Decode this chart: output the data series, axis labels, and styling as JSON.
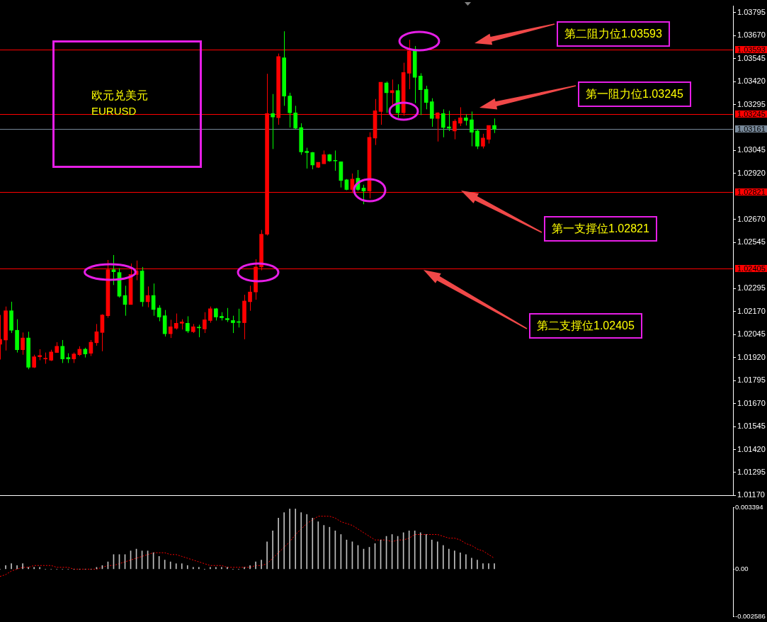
{
  "chart_data": [
    {
      "type": "candlestick",
      "title": "欧元兑美元",
      "subtitle": "EURUSD",
      "categories": [
        null,
        null,
        null,
        null,
        null,
        null,
        null,
        null,
        null,
        null,
        null,
        null,
        null,
        null,
        null,
        null,
        null,
        null,
        null,
        null,
        null,
        null,
        null,
        null,
        null,
        null,
        null,
        null,
        null,
        null,
        null,
        null,
        null,
        null,
        null,
        null,
        null,
        null,
        null,
        null,
        null,
        null,
        null,
        null,
        null,
        null,
        null,
        null,
        null,
        null,
        null,
        null,
        null,
        null,
        null,
        null,
        null,
        null,
        null,
        null,
        null,
        null,
        null,
        null,
        null,
        null,
        null,
        null,
        null,
        null,
        null,
        null,
        null,
        null,
        null,
        null,
        null,
        null,
        null,
        null,
        null,
        null,
        null,
        null,
        null,
        null,
        null,
        null,
        null,
        null,
        null,
        null,
        null,
        null,
        null,
        null,
        null,
        null,
        null,
        null,
        null,
        null,
        null,
        null,
        null,
        null,
        null,
        null,
        null,
        null,
        null,
        null,
        null,
        null,
        null,
        null,
        null,
        null,
        null,
        null,
        null,
        null,
        null,
        null,
        null,
        null,
        null,
        null,
        null,
        null
      ],
      "ohlc": [
        [
          1.01992,
          1.02151,
          1.01909,
          1.02019
        ],
        [
          1.02015,
          1.02197,
          1.01958,
          1.02174
        ],
        [
          1.02174,
          1.02223,
          1.02053,
          1.02068
        ],
        [
          1.02068,
          1.02128,
          1.01947,
          1.01962
        ],
        [
          1.01962,
          1.02056,
          1.01935,
          1.02026
        ],
        [
          1.02026,
          1.0206,
          1.01856,
          1.01867
        ],
        [
          1.01867,
          1.01935,
          1.01863,
          1.01924
        ],
        [
          1.01924,
          1.01965,
          1.01905,
          1.01931
        ],
        [
          1.01912,
          1.01947,
          1.01886,
          1.01916
        ],
        [
          1.01905,
          1.01962,
          1.01901,
          1.0195
        ],
        [
          1.01947,
          1.02003,
          1.01947,
          1.01981
        ],
        [
          1.01981,
          1.02015,
          1.0189,
          1.01912
        ],
        [
          1.0192,
          1.01943,
          1.0189,
          1.01912
        ],
        [
          1.01912,
          1.01947,
          1.0189,
          1.01939
        ],
        [
          1.01935,
          1.01981,
          1.01928,
          1.01965
        ],
        [
          1.01965,
          1.01973,
          1.0192,
          1.01939
        ],
        [
          1.01943,
          1.02015,
          1.01928,
          1.02003
        ],
        [
          1.02,
          1.02102,
          1.01984,
          1.0206
        ],
        [
          1.02056,
          1.02155,
          1.01954,
          1.02151
        ],
        [
          1.02147,
          1.0245,
          1.02136,
          1.02397
        ],
        [
          1.02397,
          1.02477,
          1.02314,
          1.02386
        ],
        [
          1.02382,
          1.02405,
          1.02246,
          1.02253
        ],
        [
          1.02257,
          1.0231,
          1.02147,
          1.02208
        ],
        [
          1.02208,
          1.02431,
          1.02208,
          1.02371
        ],
        [
          1.02371,
          1.02447,
          1.0234,
          1.0239
        ],
        [
          1.0239,
          1.02412,
          1.02197,
          1.02223
        ],
        [
          1.02223,
          1.02306,
          1.02193,
          1.02257
        ],
        [
          1.02257,
          1.02322,
          1.02147,
          1.02181
        ],
        [
          1.02189,
          1.02204,
          1.02117,
          1.0214
        ],
        [
          1.02147,
          1.02178,
          1.02034,
          1.02049
        ],
        [
          1.02049,
          1.02125,
          1.02026,
          1.02087
        ],
        [
          1.02079,
          1.02159,
          1.02072,
          1.02106
        ],
        [
          1.02106,
          1.02128,
          1.02072,
          1.02113
        ],
        [
          1.02106,
          1.02144,
          1.02053,
          1.02064
        ],
        [
          1.0206,
          1.02102,
          1.02053,
          1.02087
        ],
        [
          1.02083,
          1.02098,
          1.0203,
          1.02081
        ],
        [
          1.02075,
          1.02166,
          1.02053,
          1.02125
        ],
        [
          1.02121,
          1.02197,
          1.02109,
          1.02185
        ],
        [
          1.02185,
          1.02189,
          1.02121,
          1.0214
        ],
        [
          1.02144,
          1.02166,
          1.02121,
          1.02136
        ],
        [
          1.02132,
          1.02189,
          1.02113,
          1.02125
        ],
        [
          1.02121,
          1.02147,
          1.02053,
          1.02109
        ],
        [
          1.02113,
          1.02185,
          1.02083,
          1.02111
        ],
        [
          1.02109,
          1.02261,
          1.02019,
          1.02227
        ],
        [
          1.02223,
          1.0231,
          1.02174,
          1.02276
        ],
        [
          1.02276,
          1.02454,
          1.02234,
          1.02412
        ],
        [
          1.02412,
          1.02613,
          1.02394,
          1.0259
        ],
        [
          1.0259,
          1.03462,
          1.02583,
          1.03246
        ],
        [
          1.03246,
          1.03352,
          1.03053,
          1.03227
        ],
        [
          1.03223,
          1.03572,
          1.03185,
          1.03556
        ],
        [
          1.03549,
          1.03693,
          1.03288,
          1.03341
        ],
        [
          1.03341,
          1.03359,
          1.0317,
          1.0325
        ],
        [
          1.0325,
          1.03288,
          1.03162,
          1.03166
        ],
        [
          1.0317,
          1.03193,
          1.03022,
          1.03037
        ],
        [
          1.03041,
          1.0306,
          1.02947,
          1.03034
        ],
        [
          1.03034,
          1.03037,
          1.02943,
          1.02966
        ],
        [
          1.02954,
          1.02981,
          1.0295,
          1.02981
        ],
        [
          1.02973,
          1.03045,
          1.02973,
          1.03022
        ],
        [
          1.03022,
          1.03026,
          1.02984,
          1.02988
        ],
        [
          1.02992,
          1.03045,
          1.02935,
          1.02988
        ],
        [
          1.02984,
          1.02984,
          1.02844,
          1.02882
        ],
        [
          1.02886,
          1.0289,
          1.02829,
          1.02833
        ],
        [
          1.02833,
          1.0292,
          1.02814,
          1.0289
        ],
        [
          1.02894,
          1.02939,
          1.02825,
          1.02833
        ],
        [
          1.02841,
          1.02859,
          1.02753,
          1.02825
        ],
        [
          1.02825,
          1.03144,
          1.02784,
          1.03117
        ],
        [
          1.03113,
          1.03325,
          1.03075,
          1.03261
        ],
        [
          1.03257,
          1.03416,
          1.03185,
          1.03416
        ],
        [
          1.03412,
          1.0342,
          1.0325,
          1.03359
        ],
        [
          1.03359,
          1.03431,
          1.03284,
          1.03371
        ],
        [
          1.03371,
          1.03405,
          1.03223,
          1.0325
        ],
        [
          1.0325,
          1.03522,
          1.03234,
          1.03469
        ],
        [
          1.03465,
          1.03647,
          1.03378,
          1.03587
        ],
        [
          1.03594,
          1.03613,
          1.03303,
          1.03443
        ],
        [
          1.0345,
          1.03465,
          1.03238,
          1.03375
        ],
        [
          1.03378,
          1.03397,
          1.03269,
          1.03306
        ],
        [
          1.0331,
          1.03329,
          1.03174,
          1.03219
        ],
        [
          1.03219,
          1.03253,
          1.03094,
          1.0325
        ],
        [
          1.03246,
          1.03269,
          1.03117,
          1.0317
        ],
        [
          1.03174,
          1.03261,
          1.03151,
          1.03166
        ],
        [
          1.03151,
          1.03215,
          1.03106,
          1.03204
        ],
        [
          1.03193,
          1.0328,
          1.03178,
          1.03223
        ],
        [
          1.03223,
          1.03242,
          1.03181,
          1.03208
        ],
        [
          1.03212,
          1.03257,
          1.03068,
          1.03144
        ],
        [
          1.03151,
          1.03162,
          1.03053,
          1.03068
        ],
        [
          1.03068,
          1.03136,
          1.03056,
          1.03113
        ],
        [
          1.03106,
          1.03181,
          1.03083,
          1.03181
        ],
        [
          1.03181,
          1.03219,
          1.0314,
          1.03161
        ],
        null,
        null,
        null,
        null,
        null,
        null,
        null,
        null,
        null,
        null,
        null,
        null,
        null,
        null,
        null,
        null,
        null,
        null,
        null,
        null,
        null,
        null,
        null,
        null,
        null,
        null,
        null,
        null,
        null,
        null,
        null,
        null,
        null,
        null,
        null,
        null,
        null,
        null,
        null,
        null,
        null,
        null
      ],
      "colors": [
        "#ff0000",
        "#ff0000",
        "#00ff00",
        "#00ff00",
        "#ff0000",
        "#00ff00",
        "#ff0000",
        "#ff0000",
        "#ff0000",
        "#ff0000",
        "#ff0000",
        "#00ff00",
        "#00ff00",
        "#ff0000",
        "#ff0000",
        "#00ff00",
        "#ff0000",
        "#ff0000",
        "#ff0000",
        "#ff0000",
        "#00ff00",
        "#00ff00",
        "#00ff00",
        "#ff0000",
        "#ff0000",
        "#00ff00",
        "#ff0000",
        "#00ff00",
        "#00ff00",
        "#00ff00",
        "#ff0000",
        "#ff0000",
        "#ff0000",
        "#00ff00",
        "#ff0000",
        "#00ff00",
        "#ff0000",
        "#ff0000",
        "#00ff00",
        "#00ff00",
        "#00ff00",
        "#00ff00",
        "#00ff00",
        "#ff0000",
        "#ff0000",
        "#ff0000",
        "#ff0000",
        "#ff0000",
        "#00ff00",
        "#ff0000",
        "#00ff00",
        "#00ff00",
        "#00ff00",
        "#00ff00",
        "#00ff00",
        "#00ff00",
        "#ff0000",
        "#ff0000",
        "#00ff00",
        "#00ff00",
        "#00ff00",
        "#00ff00",
        "#ff0000",
        "#00ff00",
        "#00ff00",
        "#ff0000",
        "#ff0000",
        "#ff0000",
        "#00ff00",
        "#ff0000",
        "#00ff00",
        "#ff0000",
        "#ff0000",
        "#00ff00",
        "#00ff00",
        "#00ff00",
        "#00ff00",
        "#ff0000",
        "#00ff00",
        "#00ff00",
        "#ff0000",
        "#ff0000",
        "#00ff00",
        "#00ff00",
        "#00ff00",
        "#ff0000",
        "#ff0000",
        "#00ff00",
        null,
        null,
        null,
        null,
        null,
        null,
        null,
        null,
        null,
        null,
        null,
        null,
        null,
        null,
        null,
        null,
        null,
        null,
        null,
        null,
        null,
        null,
        null,
        null,
        null,
        null,
        null,
        null,
        null,
        null,
        null,
        null,
        null,
        null,
        null,
        null,
        null,
        null,
        null,
        null,
        null,
        null
      ],
      "ylim": [
        1.0117,
        1.0383
      ],
      "yticks": [
        1.03795,
        {
          "value": 1.0367,
          "label": "1.03670"
        },
        1.03545,
        {
          "value": 1.0342,
          "label": "1.03420"
        },
        1.03295,
        1.03045,
        {
          "value": 1.0292,
          "label": "1.02920"
        },
        {
          "value": 1.0267,
          "label": "1.02670"
        },
        1.02545,
        1.02295,
        {
          "value": 1.0217,
          "label": "1.02170"
        },
        1.02045,
        {
          "value": 1.0192,
          "label": "1.01920"
        },
        1.01795,
        {
          "value": 1.0167,
          "label": "1.01670"
        },
        1.01545,
        {
          "value": 1.0142,
          "label": "1.01420"
        },
        1.01295,
        {
          "value": 1.0117,
          "label": "1.01170"
        }
      ],
      "ref_lines": [
        {
          "axis": "y",
          "value": 1.03593,
          "label": "1.03593",
          "color": "#ff0000"
        },
        {
          "axis": "y",
          "value": 1.03245,
          "label": "1.03245",
          "color": "#ff0000"
        },
        {
          "axis": "y",
          "value": 1.03161,
          "label": "1.03161",
          "color": "#778899"
        },
        {
          "axis": "y",
          "value": 1.02821,
          "label": "1.02821",
          "color": "#ff0000"
        },
        {
          "axis": "y",
          "value": 1.02405,
          "label": "1.02405",
          "color": "#ff0000"
        }
      ],
      "annotations": [
        "第二阻力位1.03593",
        "第一阻力位1.03245",
        "第一支撑位1.02821",
        "第二支撑位1.02405"
      ]
    },
    {
      "type": "bar",
      "categories": [
        null,
        null,
        null,
        null,
        null,
        null,
        null,
        null,
        null,
        null,
        null,
        null,
        null,
        null,
        null,
        null,
        null,
        null,
        null,
        null,
        null,
        null,
        null,
        null,
        null,
        null,
        null,
        null,
        null,
        null,
        null,
        null,
        null,
        null,
        null,
        null,
        null,
        null,
        null,
        null,
        null,
        null,
        null,
        null,
        null,
        null,
        null,
        null,
        null,
        null,
        null,
        null,
        null,
        null,
        null,
        null,
        null,
        null,
        null,
        null,
        null,
        null,
        null,
        null,
        null,
        null,
        null,
        null,
        null,
        null,
        null,
        null,
        null,
        null,
        null,
        null,
        null,
        null,
        null,
        null,
        null,
        null,
        null,
        null,
        null,
        null,
        null,
        null,
        null,
        null,
        null,
        null,
        null,
        null,
        null,
        null,
        null,
        null,
        null,
        null,
        null,
        null,
        null,
        null,
        null,
        null,
        null,
        null,
        null,
        null,
        null,
        null,
        null,
        null,
        null,
        null,
        null,
        null,
        null,
        null,
        null,
        null,
        null,
        null,
        null,
        null,
        null,
        null,
        null,
        null
      ],
      "series": [
        {
          "type": "bar",
          "color": "#c0c0c0",
          "values": [
            0,
            0.0002,
            0.0003,
            0.0002,
            0.0003,
            0.0001,
            0.0001,
            0.0001,
            0,
            0,
            0,
            0,
            0,
            0,
            0,
            0,
            0,
            0.0001,
            0.0002,
            0.0004,
            0.0008,
            0.0008,
            0.0008,
            0.001,
            0.0011,
            0.001,
            0.001,
            0.0009,
            0.0007,
            0.0005,
            0.0004,
            0.0003,
            0.0003,
            0.0002,
            0.0001,
            0.0001,
            0,
            0.0001,
            0.0001,
            0.0001,
            0.0001,
            0,
            0,
            0.0001,
            0.0002,
            0.0004,
            0.0005,
            0.0015,
            0.0021,
            0.0028,
            0.0031,
            0.0033,
            0.0033,
            0.0031,
            0.003,
            0.0028,
            0.0026,
            0.0024,
            0.0023,
            0.0021,
            0.0019,
            0.0016,
            0.0015,
            0.0013,
            0.0011,
            0.0012,
            0.0014,
            0.0016,
            0.0018,
            0.0019,
            0.0018,
            0.002,
            0.0021,
            0.0021,
            0.002,
            0.0019,
            0.0016,
            0.0015,
            0.0013,
            0.0011,
            0.001,
            0.0009,
            0.0008,
            0.0006,
            0.0005,
            0.0003,
            0.0003,
            0.0003,
            null,
            null,
            null,
            null,
            null,
            null,
            null,
            null,
            null,
            null,
            null,
            null,
            null,
            null,
            null,
            null,
            null,
            null,
            null,
            null,
            null,
            null,
            null,
            null,
            null,
            null,
            null,
            null,
            null,
            null,
            null,
            null,
            null,
            null,
            null,
            null,
            null,
            null,
            null,
            null,
            null,
            null
          ]
        },
        {
          "type": "line",
          "color": "#ff0000",
          "line_style": "dotted",
          "values": [
            -0.0004,
            -0.0003,
            -0.0001,
            0,
            0.0001,
            0.0001,
            0.0002,
            0.0002,
            0.0002,
            0.0002,
            0.0001,
            0.0001,
            0.0001,
            0,
            0,
            0,
            0,
            0,
            0.0001,
            0.0002,
            0.0002,
            0.0003,
            0.0004,
            0.0005,
            0.0006,
            0.0007,
            0.0008,
            0.0009,
            0.0009,
            0.0009,
            0.0008,
            0.0008,
            0.0007,
            0.0006,
            0.0005,
            0.0004,
            0.0003,
            0.0002,
            0.0002,
            0.0002,
            0.0001,
            0.0001,
            0.0001,
            0.0001,
            0.0001,
            0.0002,
            0.0002,
            0.0003,
            0.0006,
            0.0009,
            0.0012,
            0.0015,
            0.0019,
            0.0022,
            0.0025,
            0.0027,
            0.0029,
            0.0029,
            0.0029,
            0.0028,
            0.0026,
            0.0025,
            0.0024,
            0.0022,
            0.002,
            0.0018,
            0.0016,
            0.0016,
            0.0016,
            0.0015,
            0.0016,
            0.0016,
            0.0017,
            0.0019,
            0.0019,
            0.0019,
            0.0019,
            0.0019,
            0.0018,
            0.0017,
            0.0017,
            0.0016,
            0.0014,
            0.0013,
            0.0011,
            0.001,
            0.0008,
            0.0006,
            null,
            null,
            null,
            null,
            null,
            null,
            null,
            null,
            null,
            null,
            null,
            null,
            null,
            null,
            null,
            null,
            null,
            null,
            null,
            null,
            null,
            null,
            null,
            null,
            null,
            null,
            null,
            null,
            null,
            null,
            null,
            null,
            null,
            null,
            null,
            null,
            null,
            null,
            null,
            null,
            null,
            null
          ]
        }
      ],
      "ylim": [
        -0.002586,
        0.003394
      ],
      "yticks": [
        0.003394,
        {
          "value": 0,
          "label": "0.00"
        },
        -0.002586
      ]
    }
  ]
}
